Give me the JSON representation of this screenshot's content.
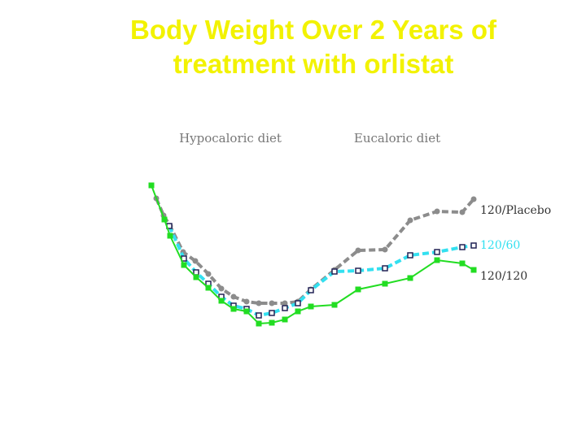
{
  "chart_data": {
    "type": "line",
    "title": "Body Weight Over 2 Years of treatment with orlistat",
    "annotations": [
      "Hypocaloric diet",
      "Eucaloric diet"
    ],
    "xlim": [
      0,
      210
    ],
    "ylim": [
      0,
      20
    ],
    "series": [
      {
        "name": "120/Placebo",
        "color": "#8c8c8c",
        "marker": "circle",
        "dash": true,
        "x": [
          11,
          15.5,
          19.5,
          27.5,
          35,
          43,
          51,
          58.5,
          66.5,
          74,
          82,
          90,
          98,
          106,
          120.5,
          135,
          151.5,
          167,
          183.5,
          199,
          206
        ],
        "values": [
          15.6,
          13.5,
          12.2,
          9,
          7.9,
          6.3,
          4.5,
          3.5,
          2.9,
          2.7,
          2.7,
          2.7,
          2.9,
          4.4,
          6.8,
          9.2,
          9.3,
          12.9,
          14,
          13.9,
          15.5
        ]
      },
      {
        "name": "120/60",
        "color": "#33e0f0",
        "marker": "square-open",
        "dash": true,
        "x": [
          19,
          28,
          35.5,
          43,
          51,
          58.5,
          66.5,
          74,
          82,
          90,
          98,
          106,
          120.5,
          135,
          151.5,
          167,
          183.5,
          199,
          206
        ],
        "values": [
          12.2,
          8.2,
          6.5,
          5.1,
          3.5,
          2.4,
          2,
          1.2,
          1.5,
          2.1,
          2.7,
          4.3,
          6.6,
          6.7,
          7,
          8.6,
          9,
          9.6,
          9.8
        ]
      },
      {
        "name": "120/120",
        "color": "#22dd22",
        "marker": "square",
        "dash": false,
        "x": [
          8,
          16,
          19.5,
          28,
          35.5,
          43,
          51,
          58.5,
          66.5,
          74,
          82,
          90,
          98,
          106,
          120.5,
          135,
          151.5,
          167,
          183.5,
          199,
          206
        ],
        "values": [
          17.2,
          13,
          11,
          7.4,
          5.9,
          4.6,
          3,
          2,
          1.7,
          0.2,
          0.3,
          0.7,
          1.7,
          2.3,
          2.5,
          4.4,
          5.1,
          5.8,
          8,
          7.6,
          6.8
        ]
      }
    ]
  }
}
